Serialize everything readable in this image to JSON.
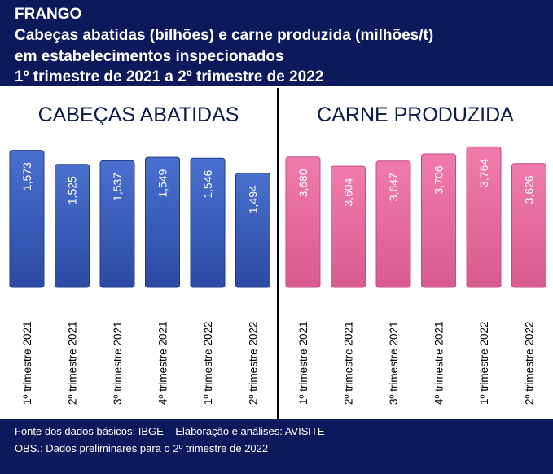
{
  "header": {
    "lines": [
      "FRANGO",
      "Cabeças abatidas (bilhões) e carne produzida (milhões/t)",
      "em estabelecimentos inspecionados",
      "1º trimestre de 2021 a 2º trimestre de 2022"
    ]
  },
  "footer": {
    "source": "Fonte dos dados básicos: IBGE – Elaboração e análises: AVISITE",
    "note": "OBS.: Dados preliminares para o 2º trimestre de 2022"
  },
  "colors": {
    "blue_bar": "#3a5fc0",
    "pink_bar": "#e86fa0",
    "navy": "#0c1a5c"
  },
  "chart_data": [
    {
      "type": "bar",
      "title": "CABEÇAS ABATIDAS",
      "categories": [
        "1º trimestre 2021",
        "2º trimestre 2021",
        "3º trimestre 2021",
        "4º trimestre 2021",
        "1º trimestre 2022",
        "2º trimestre 2022"
      ],
      "values": [
        1.573,
        1.525,
        1.537,
        1.549,
        1.546,
        1.494
      ],
      "labels": [
        "1,573",
        "1,525",
        "1,537",
        "1,549",
        "1,546",
        "1,494"
      ],
      "color": "#3a5fc0"
    },
    {
      "type": "bar",
      "title": "CARNE PRODUZIDA",
      "categories": [
        "1º trimestre 2021",
        "2º trimestre 2021",
        "3º trimestre 2021",
        "4º trimestre 2021",
        "1º trimestre 2022",
        "2º trimestre 2022"
      ],
      "values": [
        3.68,
        3.604,
        3.647,
        3.706,
        3.764,
        3.626
      ],
      "labels": [
        "3,680",
        "3,604",
        "3,647",
        "3,706",
        "3,764",
        "3,626"
      ],
      "color": "#e86fa0"
    }
  ]
}
